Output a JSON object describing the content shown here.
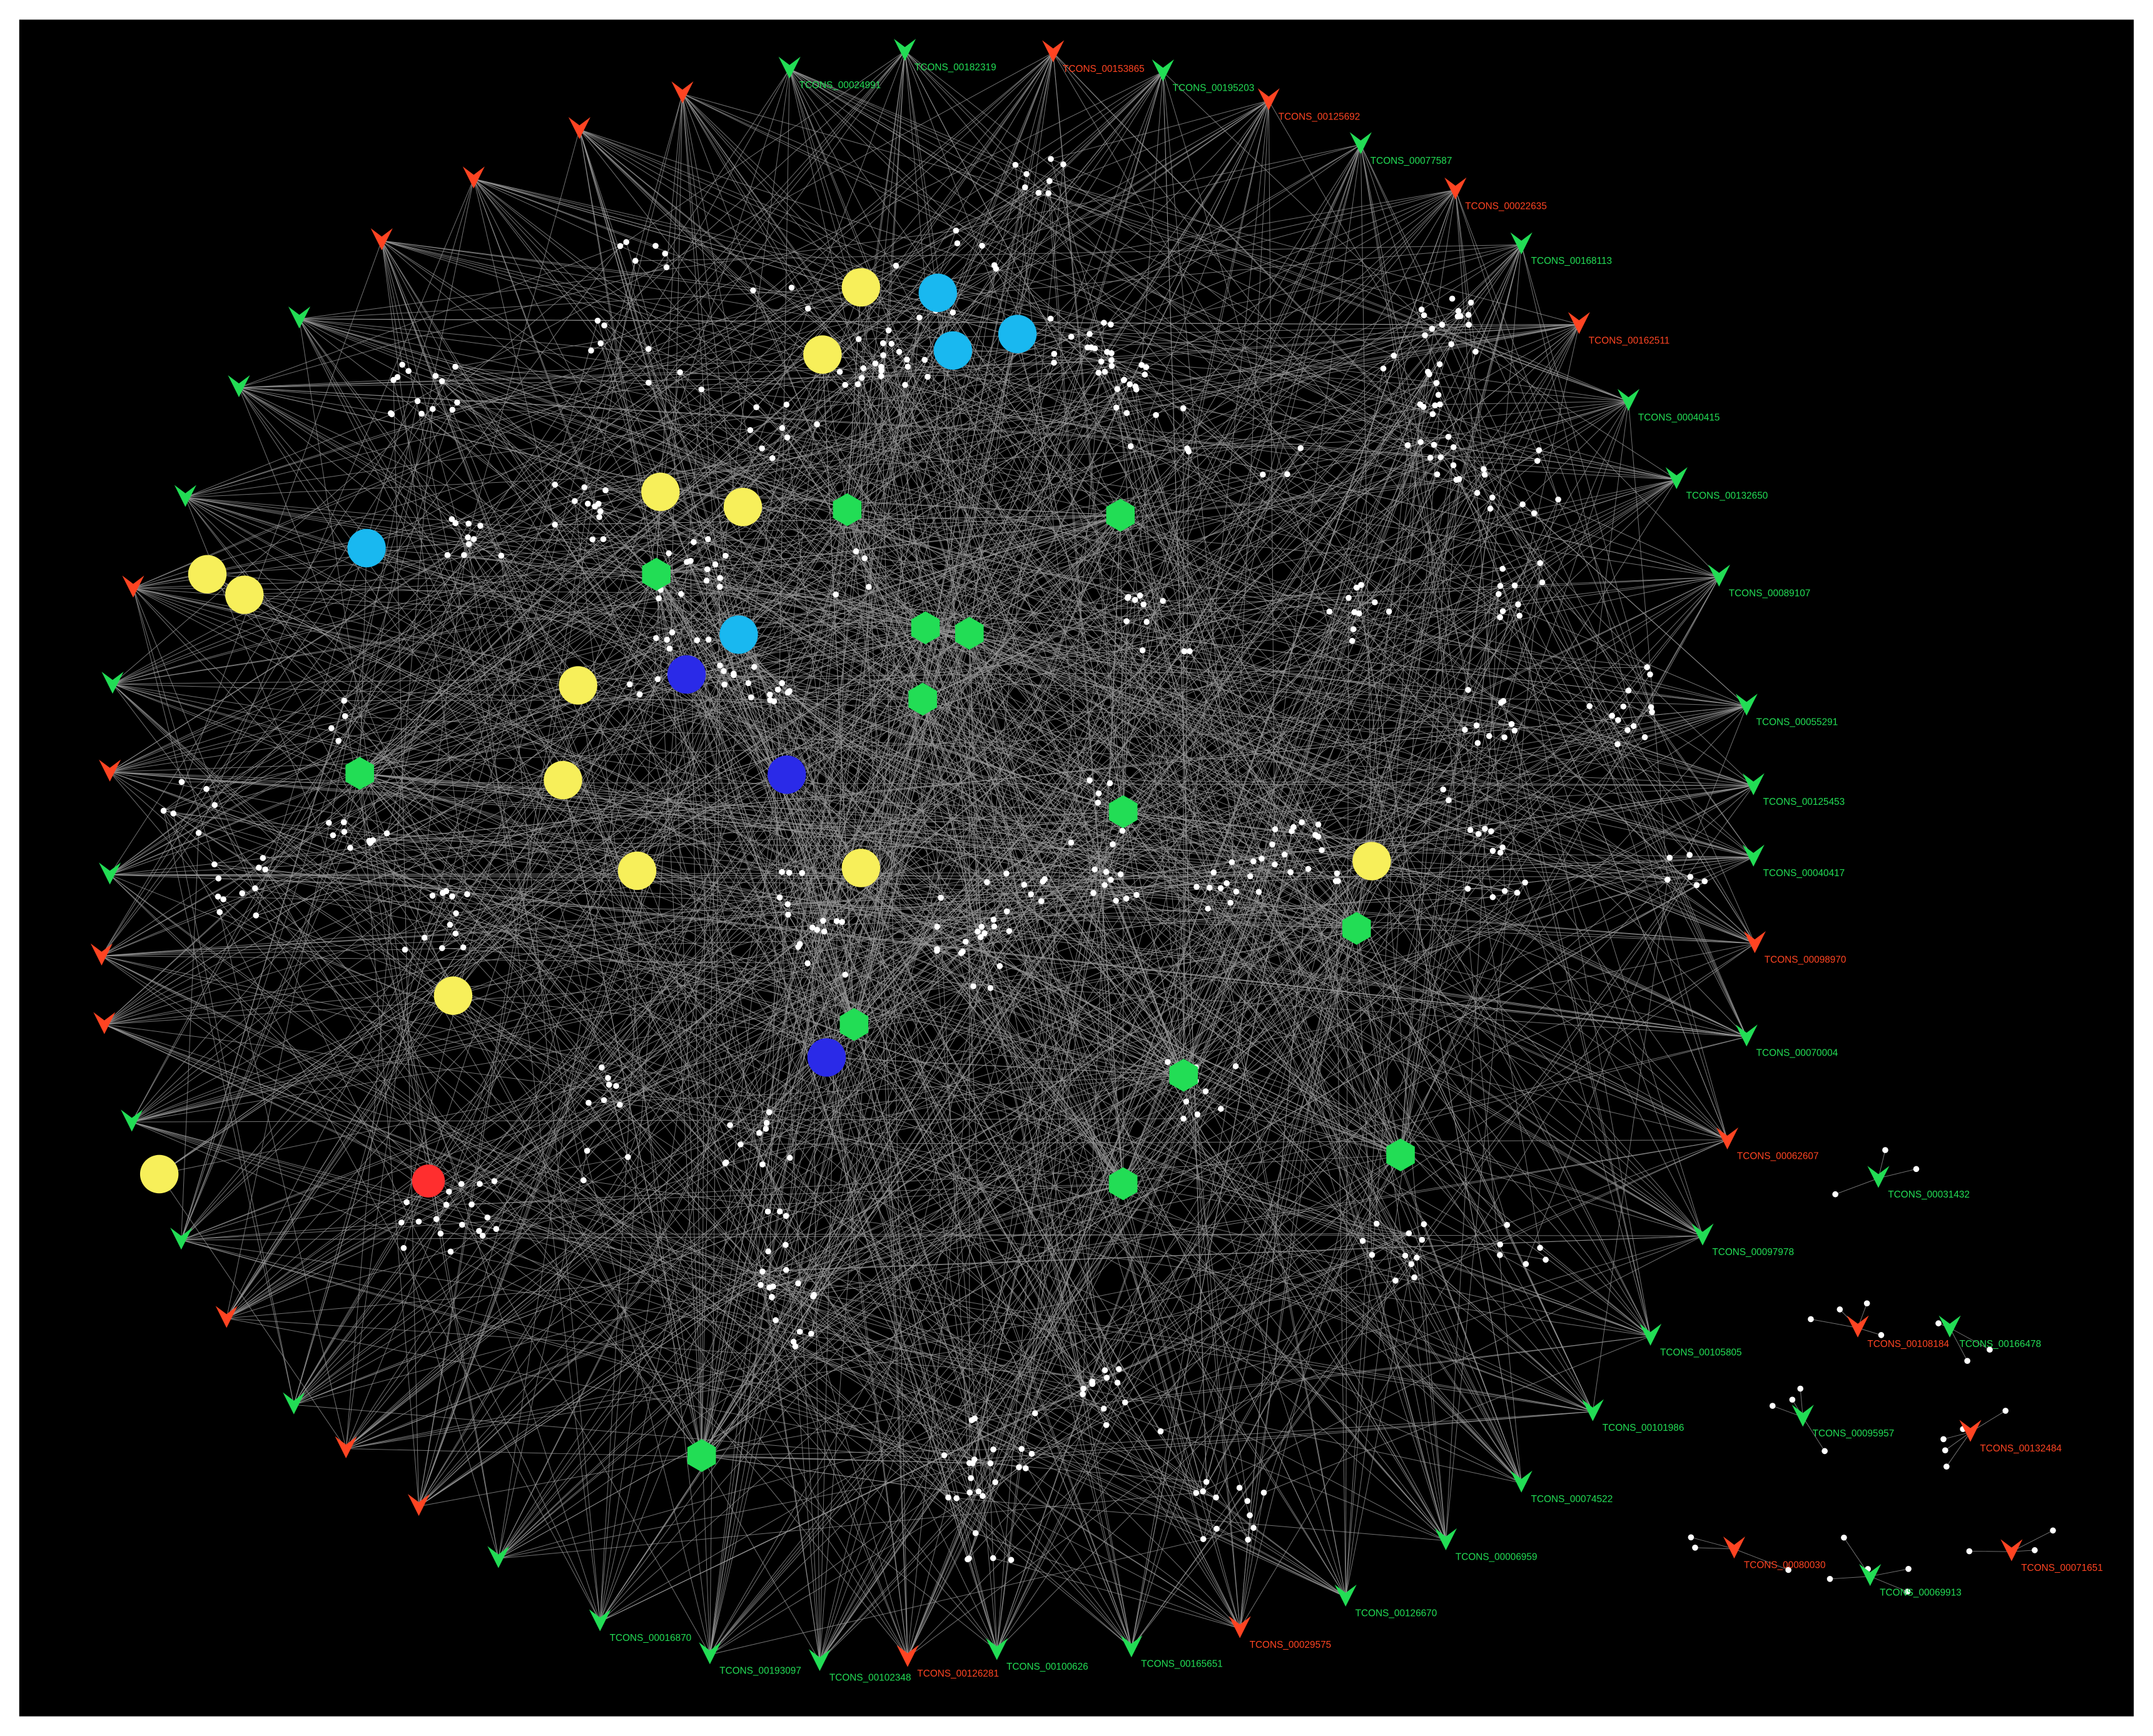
{
  "nodes": [
    {
      "label": "TCONS_00024991",
      "color": "#22dd55"
    },
    {
      "label": "TCONS_00182319",
      "color": "#22dd55"
    },
    {
      "label": "TCONS_00195203",
      "color": "#22dd55"
    },
    {
      "label": "TCONS_00077587",
      "color": "#22dd55"
    },
    {
      "label": "TCONS_00168113",
      "color": "#22dd55"
    },
    {
      "label": "TCONS_00040415",
      "color": "#22dd55"
    },
    {
      "label": "TCONS_00132650",
      "color": "#22dd55"
    },
    {
      "label": "TCONS_00089107",
      "color": "#22dd55"
    },
    {
      "label": "TCONS_00055291",
      "color": "#22dd55"
    },
    {
      "label": "TCONS_00125453",
      "color": "#22dd55"
    },
    {
      "label": "TCONS_00040417",
      "color": "#22dd55"
    },
    {
      "label": "TCONS_00070004",
      "color": "#22dd55"
    },
    {
      "label": "TCONS_00031432",
      "color": "#22dd55"
    },
    {
      "label": "TCONS_00097978",
      "color": "#22dd55"
    },
    {
      "label": "TCONS_00105805",
      "color": "#22dd55"
    },
    {
      "label": "TCONS_00166478",
      "color": "#22dd55"
    },
    {
      "label": "TCONS_00101986",
      "color": "#22dd55"
    },
    {
      "label": "TCONS_00095957",
      "color": "#22dd55"
    },
    {
      "label": "TCONS_00074522",
      "color": "#22dd55"
    },
    {
      "label": "TCONS_00006959",
      "color": "#22dd55"
    },
    {
      "label": "TCONS_00069913",
      "color": "#22dd55"
    },
    {
      "label": "TCONS_00126670",
      "color": "#22dd55"
    },
    {
      "label": "TCONS_00165651",
      "color": "#22dd55"
    },
    {
      "label": "TCONS_00100626",
      "color": "#22dd55"
    },
    {
      "label": "TCONS_00102348",
      "color": "#22dd55"
    },
    {
      "label": "TCONS_00193097",
      "color": "#22dd55"
    },
    {
      "label": "TCONS_00016870",
      "color": "#22dd55"
    },
    {
      "label": "TCONS_00153865",
      "color": "#ff4422"
    },
    {
      "label": "TCONS_00125692",
      "color": "#ff4422"
    },
    {
      "label": "TCONS_00022635",
      "color": "#ff4422"
    },
    {
      "label": "TCONS_00162511",
      "color": "#ff4422"
    },
    {
      "label": "TCONS_00098970",
      "color": "#ff4422"
    },
    {
      "label": "TCONS_00062607",
      "color": "#ff4422"
    },
    {
      "label": "TCONS_00108184",
      "color": "#ff4422"
    },
    {
      "label": "TCONS_00132484",
      "color": "#ff4422"
    },
    {
      "label": "TCONS_00080030",
      "color": "#ff4422"
    },
    {
      "label": "TCONS_00071651",
      "color": "#ff4422"
    },
    {
      "label": "TCONS_00029575",
      "color": "#ff4422"
    },
    {
      "label": "TCONS_00126281",
      "color": "#ff4422"
    }
  ]
}
